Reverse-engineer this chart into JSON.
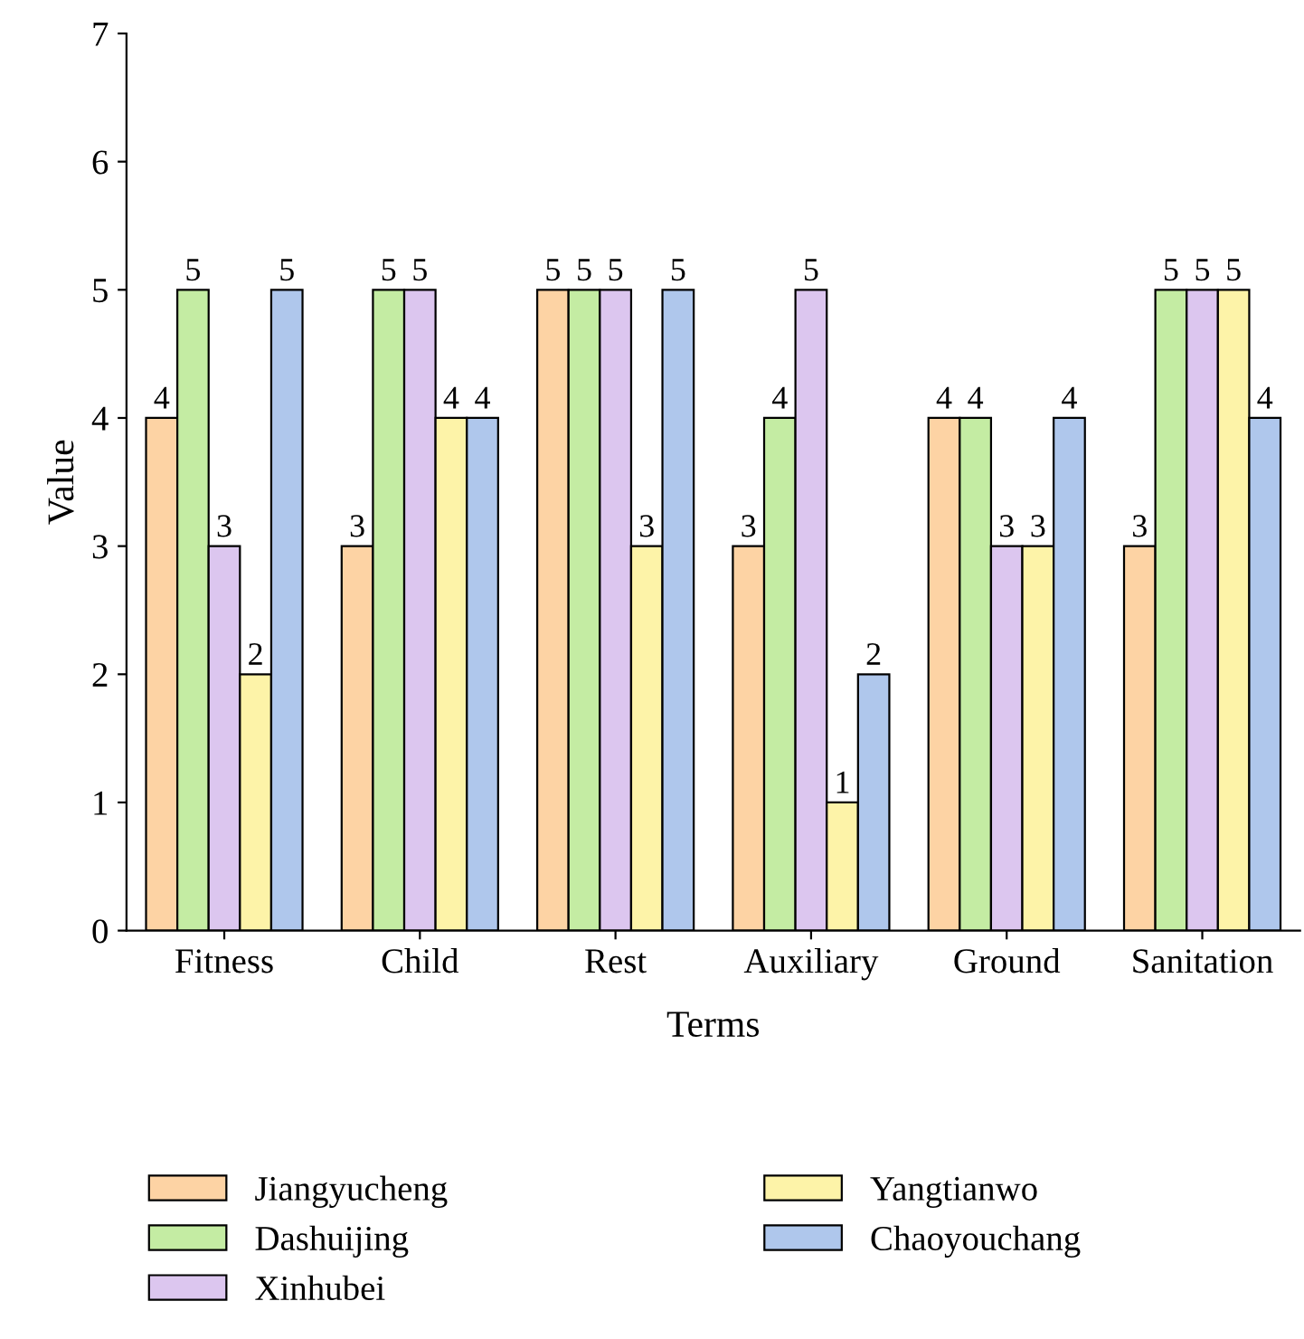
{
  "chart_data": {
    "type": "bar",
    "xlabel": "Terms",
    "ylabel": "Value",
    "categories": [
      "Fitness",
      "Child",
      "Rest",
      "Auxiliary",
      "Ground",
      "Sanitation"
    ],
    "series": [
      {
        "name": "Jiangyucheng",
        "color": "#fdd3a4",
        "values": [
          4,
          3,
          5,
          3,
          4,
          3
        ]
      },
      {
        "name": "Dashuijing",
        "color": "#c4eca3",
        "values": [
          5,
          5,
          5,
          4,
          4,
          5
        ]
      },
      {
        "name": "Xinhubei",
        "color": "#dcc6ef",
        "values": [
          3,
          5,
          5,
          5,
          3,
          5
        ]
      },
      {
        "name": "Yangtianwo",
        "color": "#fdf3a8",
        "values": [
          2,
          4,
          3,
          1,
          3,
          5
        ]
      },
      {
        "name": "Chaoyouchang",
        "color": "#afc7ec",
        "values": [
          5,
          4,
          5,
          2,
          4,
          4
        ]
      }
    ],
    "ylim": [
      0,
      7
    ],
    "yticks": [
      0,
      1,
      2,
      3,
      4,
      5,
      6,
      7
    ],
    "data_labels": true,
    "legend": "bottom",
    "grid": false
  }
}
